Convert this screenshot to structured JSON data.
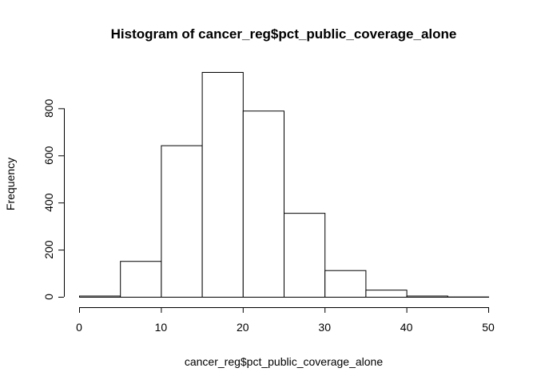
{
  "chart_data": {
    "type": "bar",
    "title": "Histogram of cancer_reg$pct_public_coverage_alone",
    "xlabel": "cancer_reg$pct_public_coverage_alone",
    "ylabel": "Frequency",
    "bins": [
      {
        "start": 0,
        "end": 5,
        "count": 5
      },
      {
        "start": 5,
        "end": 10,
        "count": 152
      },
      {
        "start": 10,
        "end": 15,
        "count": 643
      },
      {
        "start": 15,
        "end": 20,
        "count": 954
      },
      {
        "start": 20,
        "end": 25,
        "count": 790
      },
      {
        "start": 25,
        "end": 30,
        "count": 356
      },
      {
        "start": 30,
        "end": 35,
        "count": 113
      },
      {
        "start": 35,
        "end": 40,
        "count": 30
      },
      {
        "start": 40,
        "end": 45,
        "count": 5
      },
      {
        "start": 45,
        "end": 50,
        "count": 1
      }
    ],
    "xlim": [
      0,
      50
    ],
    "ylim": [
      0,
      954
    ],
    "xticks": [
      0,
      10,
      20,
      30,
      40,
      50
    ],
    "yticks": [
      0,
      200,
      400,
      600,
      800
    ],
    "grid": false,
    "colors": {
      "bar_fill": "#ffffff",
      "bar_stroke": "#000000"
    }
  }
}
